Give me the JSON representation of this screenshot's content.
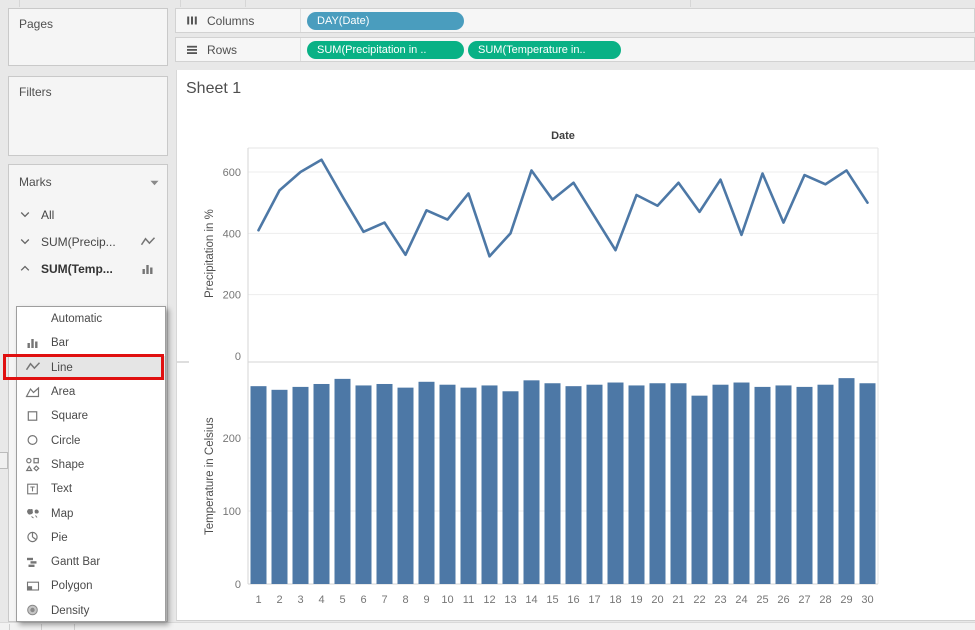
{
  "shelves": {
    "columns": {
      "label": "Columns",
      "pills": [
        {
          "label": "DAY(Date)",
          "color": "#4a9dbe"
        }
      ]
    },
    "rows": {
      "label": "Rows",
      "pills": [
        {
          "label": "SUM(Precipitation in ..",
          "color": "#09b185"
        },
        {
          "label": "SUM(Temperature in..",
          "color": "#09b185"
        }
      ]
    }
  },
  "sidebar": {
    "pages": {
      "title": "Pages"
    },
    "filters": {
      "title": "Filters"
    },
    "marks": {
      "title": "Marks",
      "cards": [
        {
          "label": "All",
          "chevron": "down",
          "right_icon": "",
          "bold": false
        },
        {
          "label": "SUM(Precip...",
          "chevron": "down",
          "right_icon": "line-mark-icon",
          "bold": false
        },
        {
          "label": "SUM(Temp...",
          "chevron": "up",
          "right_icon": "bar-mark-icon",
          "bold": true
        }
      ],
      "type_select": {
        "value": "Bar",
        "icon": "bar-mark-icon"
      },
      "menu": {
        "items": [
          {
            "label": "Automatic",
            "icon": "",
            "selected": false
          },
          {
            "label": "Bar",
            "icon": "bar-mark-icon",
            "selected": false
          },
          {
            "label": "Line",
            "icon": "line-mark-icon",
            "selected": true,
            "annotated": true
          },
          {
            "label": "Area",
            "icon": "area-icon",
            "selected": false
          },
          {
            "label": "Square",
            "icon": "square-icon",
            "selected": false
          },
          {
            "label": "Circle",
            "icon": "circle-icon",
            "selected": false
          },
          {
            "label": "Shape",
            "icon": "shape-icon",
            "selected": false
          },
          {
            "label": "Text",
            "icon": "text-icon",
            "selected": false
          },
          {
            "label": "Map",
            "icon": "map-icon",
            "selected": false
          },
          {
            "label": "Pie",
            "icon": "pie-icon",
            "selected": false
          },
          {
            "label": "Gantt Bar",
            "icon": "gantt-icon",
            "selected": false
          },
          {
            "label": "Polygon",
            "icon": "polygon-icon",
            "selected": false
          },
          {
            "label": "Density",
            "icon": "density-icon",
            "selected": false
          }
        ]
      }
    }
  },
  "sheet": {
    "title": "Sheet 1"
  },
  "chart_data": [
    {
      "type": "line",
      "title": "Date",
      "ylabel": "Precipitation in %",
      "yticks": [
        0,
        200,
        400,
        600
      ],
      "ylim": [
        0,
        680
      ],
      "x": [
        "1",
        "2",
        "3",
        "4",
        "5",
        "6",
        "7",
        "8",
        "9",
        "10",
        "11",
        "12",
        "13",
        "14",
        "15",
        "16",
        "17",
        "18",
        "19",
        "20",
        "21",
        "22",
        "23",
        "24",
        "25",
        "26",
        "27",
        "28",
        "29",
        "30"
      ],
      "values": [
        410,
        540,
        600,
        640,
        520,
        405,
        435,
        330,
        475,
        445,
        530,
        325,
        400,
        605,
        510,
        565,
        455,
        345,
        525,
        490,
        565,
        470,
        575,
        395,
        595,
        435,
        590,
        560,
        605,
        500
      ],
      "color": "#4d78a6",
      "grid": true,
      "legend": "none"
    },
    {
      "type": "bar",
      "title": "",
      "ylabel": "Temperature in Celsius",
      "yticks": [
        0,
        100,
        200
      ],
      "ylim": [
        0,
        300
      ],
      "x": [
        "1",
        "2",
        "3",
        "4",
        "5",
        "6",
        "7",
        "8",
        "9",
        "10",
        "11",
        "12",
        "13",
        "14",
        "15",
        "16",
        "17",
        "18",
        "19",
        "20",
        "21",
        "22",
        "23",
        "24",
        "25",
        "26",
        "27",
        "28",
        "29",
        "30"
      ],
      "values": [
        271,
        266,
        270,
        274,
        281,
        272,
        274,
        269,
        277,
        273,
        269,
        272,
        264,
        279,
        275,
        271,
        273,
        276,
        272,
        275,
        275,
        258,
        273,
        276,
        270,
        272,
        270,
        273,
        282,
        275
      ],
      "color": "#4d78a6",
      "grid": true,
      "legend": "none"
    }
  ]
}
